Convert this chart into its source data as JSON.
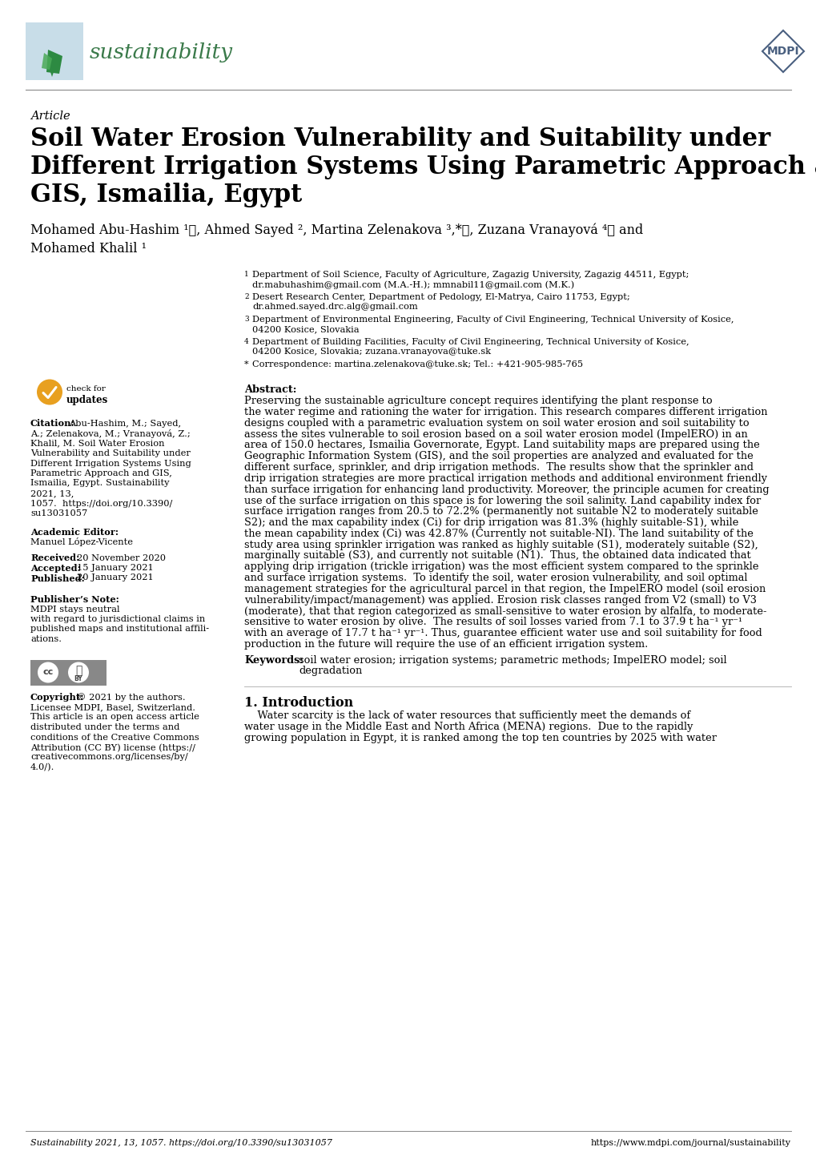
{
  "bg_color": "#ffffff",
  "header_line_color": "#888888",
  "footer_line_color": "#888888",
  "sustainability_text": "sustainability",
  "sustainability_color": "#3a7a4a",
  "sustainability_icon_bg": "#c8dde8",
  "mdpi_color": "#4a6080",
  "article_label": "Article",
  "title_line1": "Soil Water Erosion Vulnerability and Suitability under",
  "title_line2": "Different Irrigation Systems Using Parametric Approach and",
  "title_line3": "GIS, Ismailia, Egypt",
  "authors_line1": "Mohamed Abu-Hashim ¹ⓘ, Ahmed Sayed ², Martina Zelenakova ³,*ⓘ, Zuzana Vranayová ⁴ⓘ and",
  "authors_line2": "Mohamed Khalil ¹",
  "footer_journal": "Sustainability 2021, 13, 1057. https://doi.org/10.3390/su13031057",
  "footer_url": "https://www.mdpi.com/journal/sustainability"
}
